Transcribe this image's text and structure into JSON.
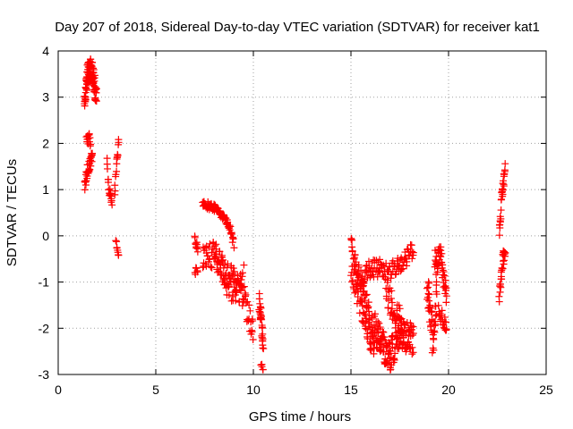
{
  "chart_data": {
    "type": "scatter",
    "title": "Day 207 of 2018, Sidereal Day-to-day VTEC variation (SDTVAR) for receiver kat1",
    "xlabel": "GPS time / hours",
    "ylabel": "SDTVAR / TECUs",
    "xlim": [
      0,
      25
    ],
    "ylim": [
      -3,
      4
    ],
    "xticks": [
      0,
      5,
      10,
      15,
      20,
      25
    ],
    "yticks": [
      -3,
      -2,
      -1,
      0,
      1,
      2,
      3,
      4
    ],
    "grid": true,
    "marker": "+",
    "color": "#ff0000",
    "series": [
      {
        "name": "kat1",
        "segments": [
          {
            "x0": 1.35,
            "x1": 1.95,
            "n": 110,
            "base": [
              [
                1.35,
                2.9
              ],
              [
                1.5,
                3.5
              ],
              [
                1.7,
                3.6
              ],
              [
                1.85,
                3.3
              ],
              [
                1.95,
                3.0
              ]
            ],
            "spread": 0.25
          },
          {
            "x0": 1.35,
            "x1": 1.75,
            "n": 35,
            "base": [
              [
                1.35,
                1.1
              ],
              [
                1.55,
                1.5
              ],
              [
                1.75,
                1.7
              ]
            ],
            "spread": 0.15
          },
          {
            "x0": 1.45,
            "x1": 1.65,
            "n": 15,
            "base": [
              [
                1.45,
                2.2
              ],
              [
                1.65,
                2.0
              ]
            ],
            "spread": 0.15
          },
          {
            "x0": 2.5,
            "x1": 2.75,
            "n": 18,
            "base": [
              [
                2.5,
                1.7
              ],
              [
                2.6,
                1.0
              ],
              [
                2.75,
                0.7
              ]
            ],
            "spread": 0.12
          },
          {
            "x0": 2.9,
            "x1": 3.1,
            "n": 15,
            "base": [
              [
                2.9,
                1.0
              ],
              [
                3.1,
                2.1
              ]
            ],
            "spread": 0.12
          },
          {
            "x0": 2.95,
            "x1": 3.1,
            "n": 8,
            "base": [
              [
                2.95,
                -0.1
              ],
              [
                3.1,
                -0.4
              ]
            ],
            "spread": 0.08
          },
          {
            "x0": 7.0,
            "x1": 7.15,
            "n": 10,
            "base": [
              [
                7.0,
                -0.1
              ],
              [
                7.15,
                -0.3
              ]
            ],
            "spread": 0.1
          },
          {
            "x0": 7.0,
            "x1": 7.15,
            "n": 6,
            "base": [
              [
                7.0,
                -0.75
              ],
              [
                7.15,
                -0.8
              ]
            ],
            "spread": 0.08
          },
          {
            "x0": 7.4,
            "x1": 9.0,
            "n": 80,
            "base": [
              [
                7.4,
                0.7
              ],
              [
                8.0,
                0.6
              ],
              [
                8.5,
                0.4
              ],
              [
                8.8,
                0.2
              ],
              [
                9.0,
                -0.2
              ]
            ],
            "spread": 0.08
          },
          {
            "x0": 7.4,
            "x1": 10.0,
            "n": 110,
            "base": [
              [
                7.4,
                -0.5
              ],
              [
                8.0,
                -0.4
              ],
              [
                8.5,
                -0.8
              ],
              [
                9.0,
                -1.0
              ],
              [
                9.5,
                -1.3
              ],
              [
                10.0,
                -2.2
              ]
            ],
            "spread": 0.3
          },
          {
            "x0": 8.0,
            "x1": 9.5,
            "n": 40,
            "base": [
              [
                8.0,
                -0.2
              ],
              [
                8.5,
                -0.9
              ],
              [
                9.0,
                -1.2
              ],
              [
                9.5,
                -0.8
              ]
            ],
            "spread": 0.3
          },
          {
            "x0": 10.3,
            "x1": 10.5,
            "n": 30,
            "base": [
              [
                10.3,
                -1.4
              ],
              [
                10.4,
                -1.8
              ],
              [
                10.5,
                -2.4
              ]
            ],
            "spread": 0.2
          },
          {
            "x0": 10.4,
            "x1": 10.5,
            "n": 5,
            "base": [
              [
                10.4,
                -2.75
              ],
              [
                10.5,
                -2.9
              ]
            ],
            "spread": 0.05
          },
          {
            "x0": 15.0,
            "x1": 16.2,
            "n": 120,
            "base": [
              [
                15.0,
                -0.4
              ],
              [
                15.3,
                -1.0
              ],
              [
                15.7,
                -1.5
              ],
              [
                16.0,
                -2.0
              ],
              [
                16.2,
                -2.2
              ]
            ],
            "spread": 0.5
          },
          {
            "x0": 16.2,
            "x1": 18.2,
            "n": 150,
            "base": [
              [
                16.2,
                -2.0
              ],
              [
                16.6,
                -2.4
              ],
              [
                17.0,
                -2.6
              ],
              [
                17.5,
                -2.1
              ],
              [
                18.0,
                -2.2
              ],
              [
                18.2,
                -2.3
              ]
            ],
            "spread": 0.35
          },
          {
            "x0": 15.5,
            "x1": 18.2,
            "n": 100,
            "base": [
              [
                15.5,
                -0.9
              ],
              [
                16.0,
                -0.7
              ],
              [
                16.5,
                -0.7
              ],
              [
                17.0,
                -0.8
              ],
              [
                17.5,
                -0.6
              ],
              [
                18.2,
                -0.3
              ]
            ],
            "spread": 0.2
          },
          {
            "x0": 16.8,
            "x1": 17.6,
            "n": 40,
            "base": [
              [
                16.8,
                -1.2
              ],
              [
                17.2,
                -1.6
              ],
              [
                17.6,
                -1.9
              ]
            ],
            "spread": 0.3
          },
          {
            "x0": 18.9,
            "x1": 19.4,
            "n": 45,
            "base": [
              [
                18.9,
                -1.0
              ],
              [
                19.1,
                -1.8
              ],
              [
                19.2,
                -2.3
              ],
              [
                19.4,
                -1.2
              ]
            ],
            "spread": 0.4
          },
          {
            "x0": 19.3,
            "x1": 19.9,
            "n": 45,
            "base": [
              [
                19.3,
                -0.6
              ],
              [
                19.6,
                -0.5
              ],
              [
                19.9,
                -1.4
              ]
            ],
            "spread": 0.3
          },
          {
            "x0": 19.5,
            "x1": 19.9,
            "n": 20,
            "base": [
              [
                19.5,
                -1.6
              ],
              [
                19.9,
                -2.0
              ]
            ],
            "spread": 0.15
          },
          {
            "x0": 22.6,
            "x1": 22.9,
            "n": 30,
            "base": [
              [
                22.6,
                0.1
              ],
              [
                22.75,
                0.9
              ],
              [
                22.9,
                1.4
              ]
            ],
            "spread": 0.2
          },
          {
            "x0": 22.6,
            "x1": 22.9,
            "n": 28,
            "base": [
              [
                22.6,
                -1.25
              ],
              [
                22.75,
                -0.6
              ],
              [
                22.9,
                -0.25
              ]
            ],
            "spread": 0.2
          }
        ]
      }
    ]
  }
}
